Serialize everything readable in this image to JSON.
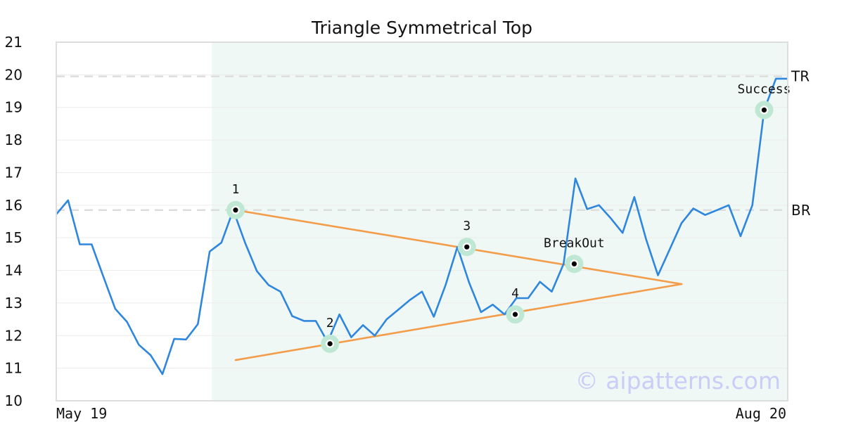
{
  "chart_data": {
    "type": "line",
    "title": "Triangle Symmetrical Top",
    "xlabel": "",
    "ylabel": "",
    "ylim": [
      10,
      21
    ],
    "yticks": [
      10,
      11,
      12,
      13,
      14,
      15,
      16,
      17,
      18,
      19,
      20,
      21
    ],
    "x_tick_labels": [
      "May 19",
      "Aug 20"
    ],
    "grid": true,
    "n_points": 63,
    "series": [
      {
        "color": "#2e86de",
        "values": [
          15.72,
          16.15,
          14.8,
          14.8,
          13.8,
          12.82,
          12.42,
          11.72,
          11.4,
          10.82,
          11.9,
          11.88,
          12.35,
          14.58,
          14.85,
          15.85,
          14.85,
          13.98,
          13.55,
          13.35,
          12.6,
          12.45,
          12.45,
          11.8,
          12.65,
          11.95,
          12.32,
          12.0,
          12.5,
          12.8,
          13.1,
          13.35,
          12.58,
          13.55,
          14.72,
          13.62,
          12.72,
          12.95,
          12.65,
          13.15,
          13.15,
          13.65,
          13.35,
          14.2,
          16.82,
          15.88,
          16.0,
          15.6,
          15.15,
          16.25,
          14.95,
          13.85,
          14.65,
          15.45,
          15.9,
          15.7,
          15.85,
          16.0,
          15.05,
          16.0,
          18.92,
          19.88,
          19.88
        ]
      }
    ],
    "horizontal_lines": [
      {
        "label": "TR",
        "value": 19.95,
        "color": "#dddddd"
      },
      {
        "label": "BR",
        "value": 15.85,
        "color": "#dddddd"
      }
    ],
    "shaded_region": {
      "x_start": 13.2,
      "x_end": 62.0,
      "color": "#e6f4ee"
    },
    "trendlines": [
      {
        "x1": 15.2,
        "y1": 15.85,
        "x2": 53.0,
        "y2": 13.58,
        "color": "#f39c4a"
      },
      {
        "x1": 15.2,
        "y1": 11.25,
        "x2": 53.0,
        "y2": 13.58,
        "color": "#f39c4a"
      }
    ],
    "points": [
      {
        "label": "1",
        "x": 15.2,
        "y": 15.85,
        "label_pos": "above"
      },
      {
        "label": "2",
        "x": 23.2,
        "y": 11.75,
        "label_pos": "above"
      },
      {
        "label": "3",
        "x": 34.8,
        "y": 14.72,
        "label_pos": "above"
      },
      {
        "label": "4",
        "x": 38.9,
        "y": 12.65,
        "label_pos": "above"
      },
      {
        "label": "BreakOut",
        "x": 43.9,
        "y": 14.2,
        "label_pos": "above"
      },
      {
        "label": "Success",
        "x": 60.0,
        "y": 18.92,
        "label_pos": "above"
      }
    ],
    "watermark": "© aipatterns.com"
  }
}
